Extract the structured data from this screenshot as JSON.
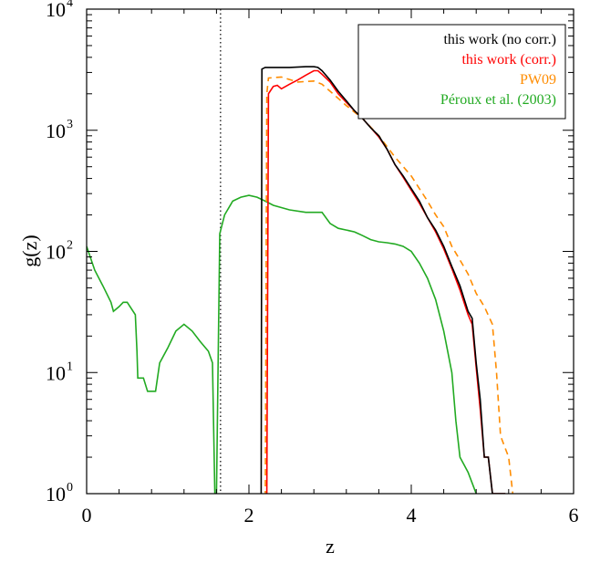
{
  "chart_data": {
    "type": "line",
    "xlabel": "z",
    "ylabel": "g(z)",
    "xlim": [
      0,
      6
    ],
    "ylim": [
      1,
      10000
    ],
    "yscale": "log",
    "grid": false,
    "legend_position": "top-right",
    "reference_line": {
      "x": 1.65,
      "style": "dotted"
    },
    "x_ticks": [
      {
        "value": 0,
        "label": "0"
      },
      {
        "value": 2,
        "label": "2"
      },
      {
        "value": 4,
        "label": "4"
      },
      {
        "value": 6,
        "label": "6"
      }
    ],
    "y_ticks": [
      {
        "value": 1,
        "base": "10",
        "exp": "0"
      },
      {
        "value": 10,
        "base": "10",
        "exp": "1"
      },
      {
        "value": 100,
        "base": "10",
        "exp": "2"
      },
      {
        "value": 1000,
        "base": "10",
        "exp": "3"
      },
      {
        "value": 10000,
        "base": "10",
        "exp": "4"
      }
    ],
    "series": [
      {
        "name": "this work (no corr.)",
        "color": "#000000",
        "dash": "",
        "points": [
          [
            2.15,
            0.5
          ],
          [
            2.15,
            1
          ],
          [
            2.16,
            3200
          ],
          [
            2.2,
            3300
          ],
          [
            2.3,
            3300
          ],
          [
            2.5,
            3300
          ],
          [
            2.7,
            3350
          ],
          [
            2.8,
            3350
          ],
          [
            2.85,
            3300
          ],
          [
            2.9,
            3100
          ],
          [
            3.0,
            2600
          ],
          [
            3.1,
            2100
          ],
          [
            3.2,
            1750
          ],
          [
            3.3,
            1450
          ],
          [
            3.4,
            1250
          ],
          [
            3.5,
            1050
          ],
          [
            3.6,
            900
          ],
          [
            3.7,
            700
          ],
          [
            3.8,
            520
          ],
          [
            3.9,
            420
          ],
          [
            4.0,
            330
          ],
          [
            4.1,
            260
          ],
          [
            4.2,
            190
          ],
          [
            4.3,
            150
          ],
          [
            4.4,
            110
          ],
          [
            4.5,
            75
          ],
          [
            4.6,
            52
          ],
          [
            4.7,
            32
          ],
          [
            4.75,
            28
          ],
          [
            4.8,
            12
          ],
          [
            4.85,
            6
          ],
          [
            4.9,
            2
          ],
          [
            4.95,
            2
          ],
          [
            5.0,
            1
          ],
          [
            5.15,
            1
          ],
          [
            5.15,
            0.5
          ]
        ]
      },
      {
        "name": "this work (corr.)",
        "color": "#ff0000",
        "dash": "",
        "points": [
          [
            2.2,
            0.5
          ],
          [
            2.22,
            1
          ],
          [
            2.24,
            2000
          ],
          [
            2.3,
            2300
          ],
          [
            2.35,
            2350
          ],
          [
            2.4,
            2200
          ],
          [
            2.5,
            2400
          ],
          [
            2.6,
            2600
          ],
          [
            2.7,
            2850
          ],
          [
            2.8,
            3100
          ],
          [
            2.85,
            3100
          ],
          [
            2.9,
            2900
          ],
          [
            3.0,
            2500
          ],
          [
            3.1,
            2000
          ],
          [
            3.2,
            1700
          ],
          [
            3.3,
            1450
          ],
          [
            3.4,
            1250
          ],
          [
            3.5,
            1050
          ],
          [
            3.6,
            880
          ],
          [
            3.7,
            700
          ],
          [
            3.8,
            520
          ],
          [
            3.9,
            410
          ],
          [
            4.0,
            320
          ],
          [
            4.1,
            250
          ],
          [
            4.2,
            190
          ],
          [
            4.3,
            145
          ],
          [
            4.4,
            105
          ],
          [
            4.5,
            72
          ],
          [
            4.6,
            48
          ],
          [
            4.7,
            30
          ],
          [
            4.75,
            25
          ],
          [
            4.8,
            11
          ],
          [
            4.85,
            5
          ],
          [
            4.9,
            2
          ],
          [
            4.95,
            2
          ],
          [
            5.0,
            1
          ],
          [
            5.15,
            1
          ],
          [
            5.15,
            0.5
          ]
        ]
      },
      {
        "name": "PW09",
        "color": "#ff8c00",
        "dash": "7,5",
        "points": [
          [
            2.2,
            0.5
          ],
          [
            2.22,
            2000
          ],
          [
            2.24,
            2700
          ],
          [
            2.4,
            2750
          ],
          [
            2.6,
            2500
          ],
          [
            2.8,
            2550
          ],
          [
            2.9,
            2400
          ],
          [
            3.0,
            2100
          ],
          [
            3.2,
            1600
          ],
          [
            3.4,
            1250
          ],
          [
            3.6,
            900
          ],
          [
            3.8,
            600
          ],
          [
            4.0,
            420
          ],
          [
            4.1,
            330
          ],
          [
            4.2,
            260
          ],
          [
            4.3,
            200
          ],
          [
            4.4,
            160
          ],
          [
            4.5,
            110
          ],
          [
            4.6,
            85
          ],
          [
            4.7,
            65
          ],
          [
            4.8,
            45
          ],
          [
            4.9,
            35
          ],
          [
            5.0,
            25
          ],
          [
            5.05,
            10
          ],
          [
            5.1,
            3
          ],
          [
            5.2,
            2
          ],
          [
            5.25,
            1
          ],
          [
            5.3,
            0.5
          ]
        ]
      },
      {
        "name": "Péroux et al. (2003)",
        "color": "#22aa22",
        "dash": "",
        "points": [
          [
            0.0,
            110
          ],
          [
            0.1,
            70
          ],
          [
            0.2,
            52
          ],
          [
            0.3,
            38
          ],
          [
            0.33,
            32
          ],
          [
            0.4,
            35
          ],
          [
            0.45,
            38
          ],
          [
            0.5,
            38
          ],
          [
            0.6,
            30
          ],
          [
            0.62,
            15
          ],
          [
            0.63,
            9
          ],
          [
            0.7,
            9
          ],
          [
            0.75,
            7
          ],
          [
            0.85,
            7
          ],
          [
            0.9,
            12
          ],
          [
            1.0,
            16
          ],
          [
            1.1,
            22
          ],
          [
            1.2,
            25
          ],
          [
            1.3,
            22
          ],
          [
            1.4,
            18
          ],
          [
            1.5,
            15
          ],
          [
            1.55,
            12
          ],
          [
            1.58,
            1
          ],
          [
            1.6,
            1
          ],
          [
            1.62,
            12
          ],
          [
            1.64,
            140
          ],
          [
            1.7,
            200
          ],
          [
            1.8,
            260
          ],
          [
            1.9,
            280
          ],
          [
            2.0,
            290
          ],
          [
            2.1,
            280
          ],
          [
            2.2,
            260
          ],
          [
            2.3,
            240
          ],
          [
            2.5,
            220
          ],
          [
            2.7,
            210
          ],
          [
            2.9,
            210
          ],
          [
            3.0,
            170
          ],
          [
            3.1,
            155
          ],
          [
            3.2,
            150
          ],
          [
            3.3,
            145
          ],
          [
            3.4,
            135
          ],
          [
            3.5,
            125
          ],
          [
            3.6,
            120
          ],
          [
            3.7,
            118
          ],
          [
            3.8,
            115
          ],
          [
            3.9,
            110
          ],
          [
            4.0,
            100
          ],
          [
            4.1,
            80
          ],
          [
            4.2,
            60
          ],
          [
            4.3,
            40
          ],
          [
            4.4,
            22
          ],
          [
            4.5,
            10
          ],
          [
            4.55,
            4
          ],
          [
            4.6,
            2
          ],
          [
            4.7,
            1.5
          ],
          [
            4.8,
            1
          ],
          [
            4.85,
            0.5
          ]
        ]
      }
    ]
  },
  "legend": {
    "items": [
      {
        "label": "this work (no corr.)",
        "color": "#000000"
      },
      {
        "label": "this work (corr.)",
        "color": "#ff0000"
      },
      {
        "label": "PW09",
        "color": "#ff8c00"
      },
      {
        "label": "Péroux et al. (2003)",
        "color": "#22aa22"
      }
    ]
  }
}
